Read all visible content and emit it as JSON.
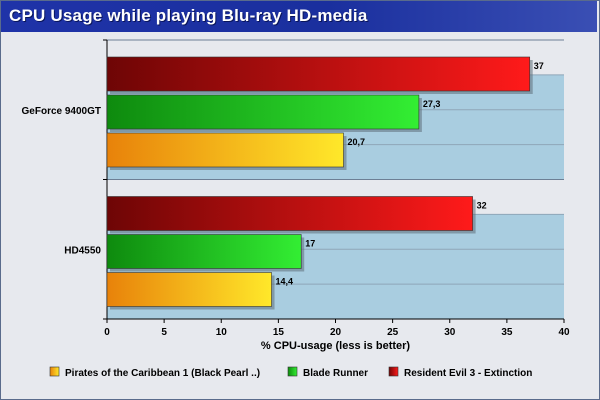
{
  "chart_data": {
    "type": "bar",
    "orientation": "horizontal",
    "title": "CPU Usage while playing Blu-ray HD-media",
    "xlabel": "% CPU-usage (less is better)",
    "ylabel": "",
    "xlim": [
      0,
      40
    ],
    "xticks": [
      0,
      5,
      10,
      15,
      20,
      25,
      30,
      35,
      40
    ],
    "categories": [
      "GeForce 9400GT",
      "HD4550"
    ],
    "series": [
      {
        "name": "Pirates of the Caribbean 1 (Black Pearl ..)",
        "values": [
          20.7,
          14.4
        ],
        "labels": [
          "20,7",
          "14,4"
        ],
        "colors": {
          "light": "#ffe82a",
          "dark": "#e8820a"
        }
      },
      {
        "name": "Blade Runner",
        "values": [
          27.3,
          17
        ],
        "labels": [
          "27,3",
          "17"
        ],
        "colors": {
          "light": "#33ee33",
          "dark": "#0e8a0e"
        }
      },
      {
        "name": "Resident Evil 3 - Extinction",
        "values": [
          37,
          32
        ],
        "labels": [
          "37",
          "32"
        ],
        "colors": {
          "light": "#ff1a1a",
          "dark": "#6e0505"
        }
      }
    ],
    "grid": true,
    "legend_position": "bottom",
    "plot_background": "#a9cde0",
    "frame_background": "#e7e9ee",
    "title_background": "#1f33a8"
  }
}
